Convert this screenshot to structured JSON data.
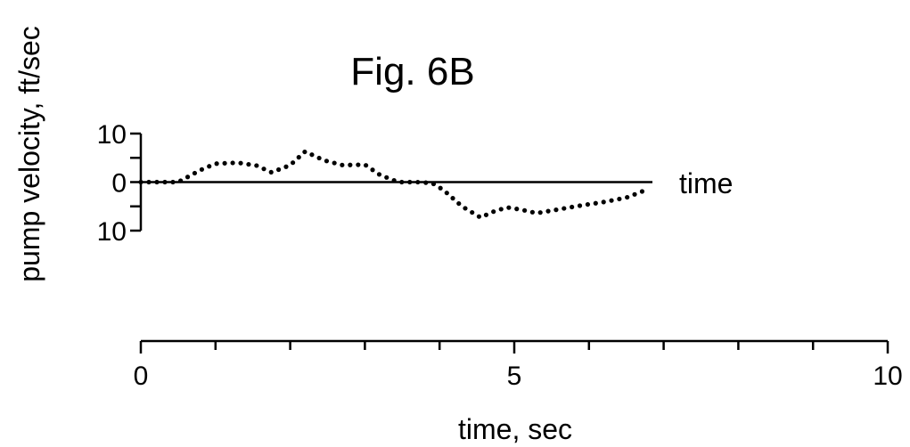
{
  "chart_data": {
    "type": "scatter",
    "title": "Fig. 6B",
    "ylabel": "pump velocity, ft/sec",
    "xlabel": "time, sec",
    "zero_line_label": "time",
    "xlim": [
      0,
      10
    ],
    "ylim": [
      -10,
      10
    ],
    "x_ticks": [
      0,
      1,
      2,
      3,
      4,
      5,
      6,
      7,
      8,
      9,
      10
    ],
    "x_tick_labels": [
      {
        "x": 0,
        "label": "0"
      },
      {
        "x": 5,
        "label": "5"
      },
      {
        "x": 10,
        "label": "10"
      }
    ],
    "y_ticks": [
      10,
      5,
      0,
      -5,
      -10
    ],
    "y_tick_labels": [
      {
        "y": 10,
        "label": "10"
      },
      {
        "y": 0,
        "label": "0"
      },
      {
        "y": -10,
        "label": "10"
      }
    ],
    "zero_line_end_x": 6.85,
    "marker": "dots",
    "grid": false,
    "series": [
      {
        "x": [
          0.0,
          0.5,
          0.8,
          1.0,
          1.3,
          1.55,
          1.75,
          2.0,
          2.2,
          2.45,
          2.7,
          3.0,
          3.2,
          3.45,
          3.7,
          3.9,
          4.05,
          4.3,
          4.55,
          4.7,
          4.9,
          5.1,
          5.3,
          5.6,
          5.9,
          6.2,
          6.5,
          6.8
        ],
        "y": [
          0.0,
          0.0,
          2.5,
          3.8,
          4.0,
          3.4,
          2.0,
          3.5,
          6.3,
          4.5,
          3.5,
          3.6,
          1.5,
          0.0,
          0.0,
          -0.2,
          -1.6,
          -5.0,
          -7.3,
          -6.2,
          -5.2,
          -5.7,
          -6.4,
          -5.6,
          -4.8,
          -4.1,
          -3.2,
          -1.4
        ]
      }
    ]
  }
}
